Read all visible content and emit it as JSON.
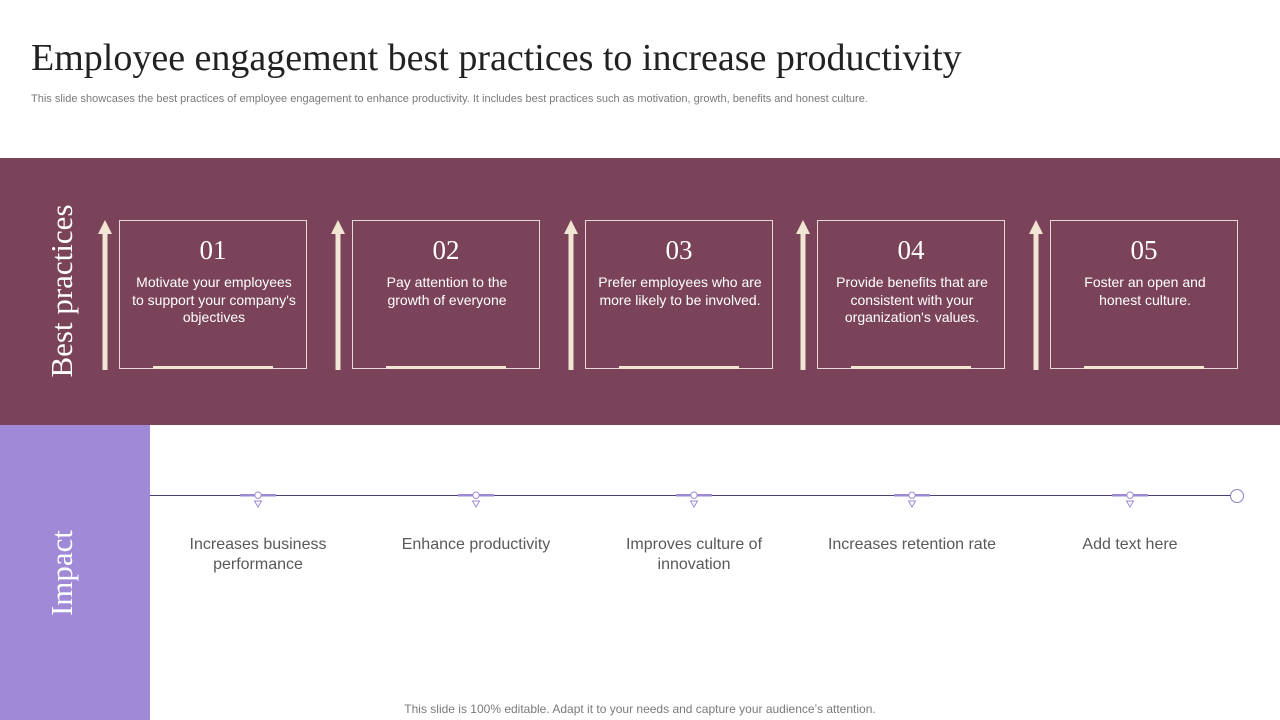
{
  "slide": {
    "title": "Employee engagement best practices to increase productivity",
    "subtitle": "This slide showcases the best practices of employee engagement to enhance productivity. It includes best practices such as motivation, growth, benefits and honest culture.",
    "footer": "This slide is 100% editable. Adapt it to your needs and capture your audience’s attention."
  },
  "best_practices": {
    "label": "Best practices",
    "items": [
      {
        "number": "01",
        "text": "Motivate your employees to support your company's objectives"
      },
      {
        "number": "02",
        "text": "Pay attention to the growth of everyone"
      },
      {
        "number": "03",
        "text": "Prefer employees who are more likely to be involved."
      },
      {
        "number": "04",
        "text": "Provide benefits that are consistent with your organization's values."
      },
      {
        "number": "05",
        "text": "Foster an open and honest culture."
      }
    ]
  },
  "impact": {
    "label": "Impact",
    "items": [
      {
        "text": "Increases business performance"
      },
      {
        "text": "Enhance productivity"
      },
      {
        "text": "Improves culture of innovation"
      },
      {
        "text": "Increases retention rate"
      },
      {
        "text": "Add text here"
      }
    ]
  },
  "colors": {
    "band": "#7a4359",
    "impact_panel": "#a08ad8",
    "arrow": "#f1e6d3",
    "timeline": "#4b3f78",
    "marker": "#9c8ad4"
  },
  "icons": {
    "arrow": "up-arrow-icon",
    "marker": "timeline-marker-icon",
    "end": "timeline-end-circle-icon"
  }
}
